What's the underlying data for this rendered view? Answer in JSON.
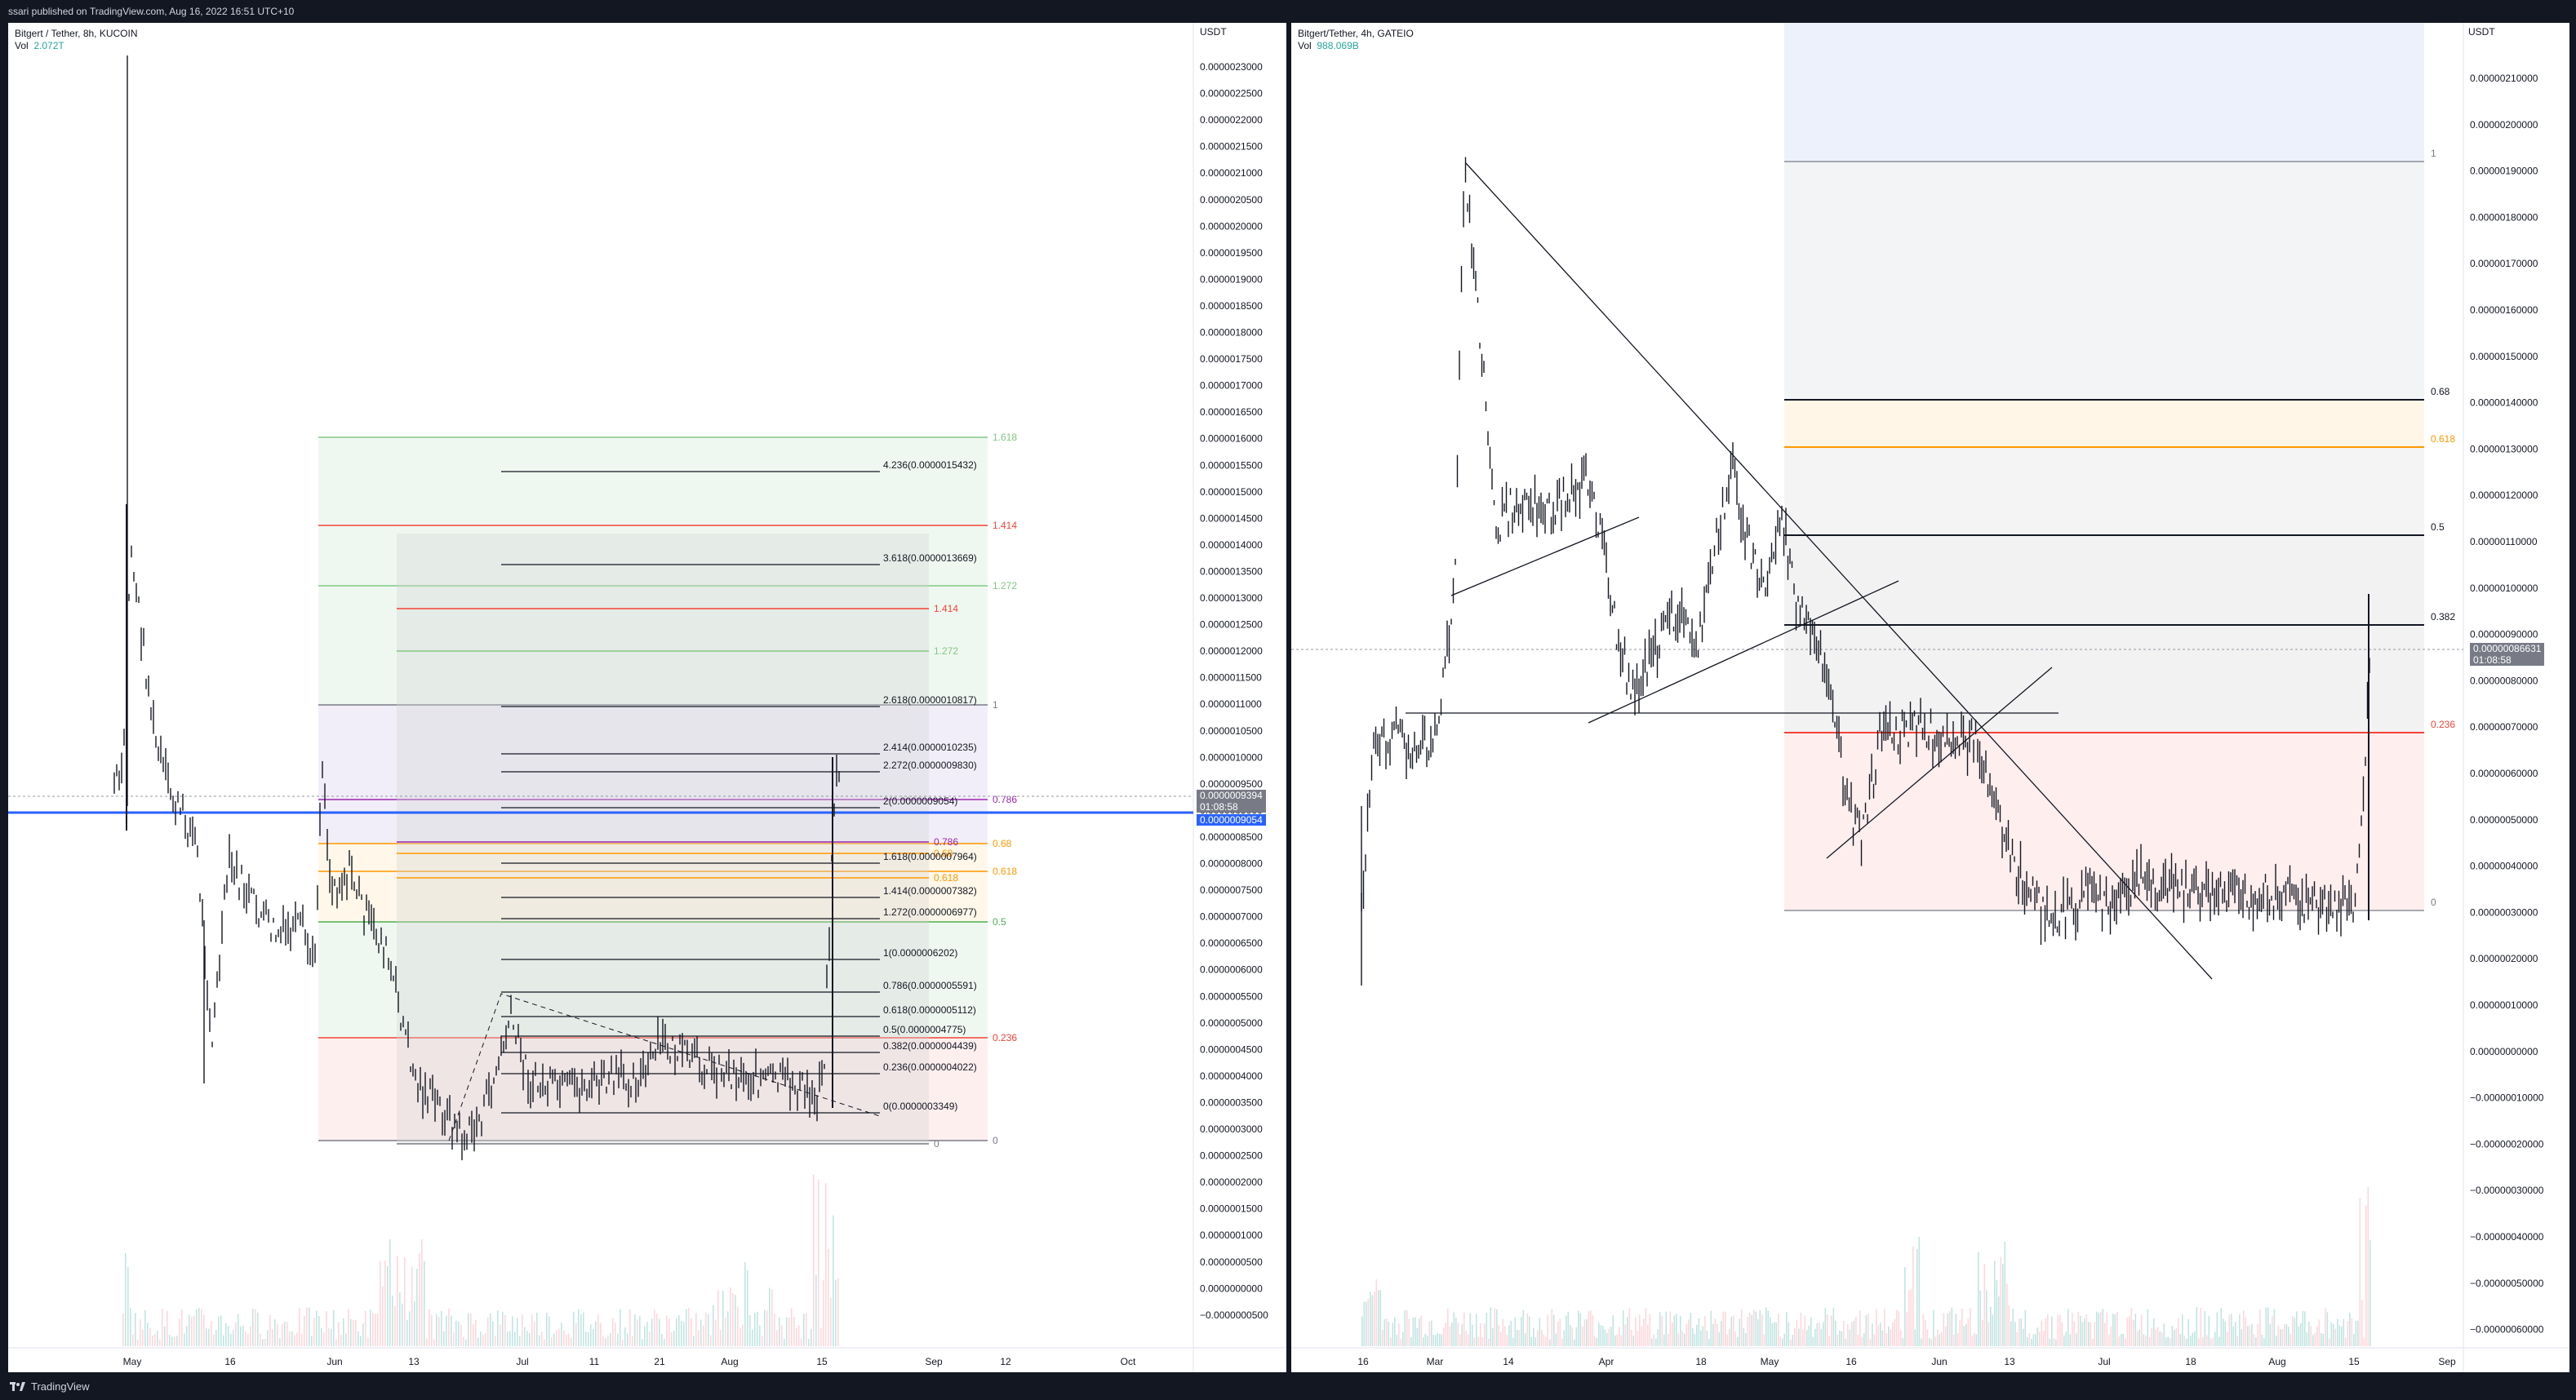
{
  "header": {
    "published": "ssari published on TradingView.com, Aug 16, 2022 16:51 UTC+10"
  },
  "footer": {
    "brand": "TradingView"
  },
  "colors": {
    "up": "#26a69a",
    "down": "#ef5350",
    "blue": "#2962ff",
    "candle": "#131722"
  },
  "left_chart": {
    "title": "Bitgert / Tether, 8h, KUCOIN",
    "vol_label": "Vol",
    "vol_value": "2.072T",
    "unit": "USDT",
    "price_ticks": [
      "0.0000023000",
      "0.0000022500",
      "0.0000022000",
      "0.0000021500",
      "0.0000021000",
      "0.0000020500",
      "0.0000020000",
      "0.0000019500",
      "0.0000019000",
      "0.0000018500",
      "0.0000018000",
      "0.0000017500",
      "0.0000017000",
      "0.0000016500",
      "0.0000016000",
      "0.0000015500",
      "0.0000015000",
      "0.0000014500",
      "0.0000014000",
      "0.0000013500",
      "0.0000013000",
      "0.0000012500",
      "0.0000012000",
      "0.0000011500",
      "0.0000011000",
      "0.0000010500",
      "0.0000010000",
      "0.0000009500",
      "0.0000009000",
      "0.0000008500",
      "0.0000008000",
      "0.0000007500",
      "0.0000007000",
      "0.0000006500",
      "0.0000006000",
      "0.0000005500",
      "0.0000005000",
      "0.0000004500",
      "0.0000004000",
      "0.0000003500",
      "0.0000003000",
      "0.0000002500",
      "0.0000002000",
      "0.0000001500",
      "0.0000001000",
      "0.0000000500",
      "0.0000000000",
      "−0.0000000500"
    ],
    "last_price": "0.0000009394",
    "countdown": "01:08:58",
    "blue_line_price": "0.0000009054",
    "time_ticks": [
      "May",
      "16",
      "Jun",
      "13",
      "Jul",
      "11",
      "21",
      "Aug",
      "15",
      "Sep",
      "12",
      "Oct"
    ],
    "fib_extension": [
      {
        "label": "4.236(0.0000015432)"
      },
      {
        "label": "3.618(0.0000013669)"
      },
      {
        "label": "2.618(0.0000010817)"
      },
      {
        "label": "2.414(0.0000010235)"
      },
      {
        "label": "2.272(0.0000009830)"
      },
      {
        "label": "2(0.0000009054)"
      },
      {
        "label": "1.618(0.0000007964)"
      },
      {
        "label": "1.414(0.0000007382)"
      },
      {
        "label": "1.272(0.0000006977)"
      },
      {
        "label": "1(0.0000006202)"
      },
      {
        "label": "0.786(0.0000005591)"
      },
      {
        "label": "0.618(0.0000005112)"
      },
      {
        "label": "0.5(0.0000004775)"
      },
      {
        "label": "0.382(0.0000004439)"
      },
      {
        "label": "0.236(0.0000004022)"
      },
      {
        "label": "0(0.0000003349)"
      }
    ],
    "fib_outer": [
      "1.618",
      "1.414",
      "1.272",
      "1",
      "0.786",
      "0.68",
      "0.618",
      "0.5",
      "0.236",
      "0"
    ],
    "fib_inner": [
      "1.414",
      "1.272",
      "0.786",
      "0.68",
      "0.618",
      "0"
    ]
  },
  "right_chart": {
    "title": "Bitgert/Tether, 4h, GATEIO",
    "vol_label": "Vol",
    "vol_value": "988.069B",
    "unit": "USDT",
    "price_ticks": [
      "0.00000210000",
      "0.00000200000",
      "0.00000190000",
      "0.00000180000",
      "0.00000170000",
      "0.00000160000",
      "0.00000150000",
      "0.00000140000",
      "0.00000130000",
      "0.00000120000",
      "0.00000110000",
      "0.00000100000",
      "0.00000090000",
      "0.00000080000",
      "0.00000070000",
      "0.00000060000",
      "0.00000050000",
      "0.00000040000",
      "0.00000030000",
      "0.00000020000",
      "0.00000010000",
      "0.00000000000",
      "−0.00000010000",
      "−0.00000020000",
      "−0.00000030000",
      "−0.00000040000",
      "−0.00000050000",
      "−0.00000060000"
    ],
    "last_price": "0.00000086631",
    "countdown": "01:08:58",
    "time_ticks": [
      "16",
      "Mar",
      "14",
      "Apr",
      "18",
      "May",
      "16",
      "Jun",
      "13",
      "Jul",
      "18",
      "Aug",
      "15",
      "Sep"
    ],
    "fib_levels": [
      "1",
      "0.68",
      "0.618",
      "0.5",
      "0.382",
      "0.236",
      "0"
    ]
  }
}
